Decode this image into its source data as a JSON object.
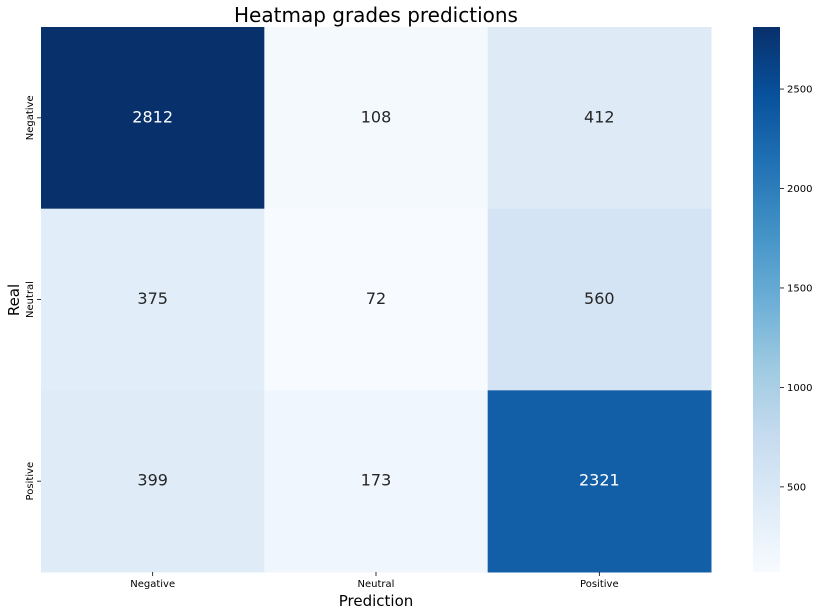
{
  "chart_data": {
    "type": "heatmap",
    "title": "Heatmap grades predictions",
    "xlabel": "Prediction",
    "ylabel": "Real",
    "x_categories": [
      "Negative",
      "Neutral",
      "Positive"
    ],
    "y_categories": [
      "Negative",
      "Neutral",
      "Positive"
    ],
    "values": [
      [
        2812,
        108,
        412
      ],
      [
        375,
        72,
        560
      ],
      [
        399,
        173,
        2321
      ]
    ],
    "colormap": "Blues",
    "color_range": [
      72,
      2812
    ],
    "colorbar_ticks": [
      500,
      1000,
      1500,
      2000,
      2500
    ],
    "grid": false
  }
}
